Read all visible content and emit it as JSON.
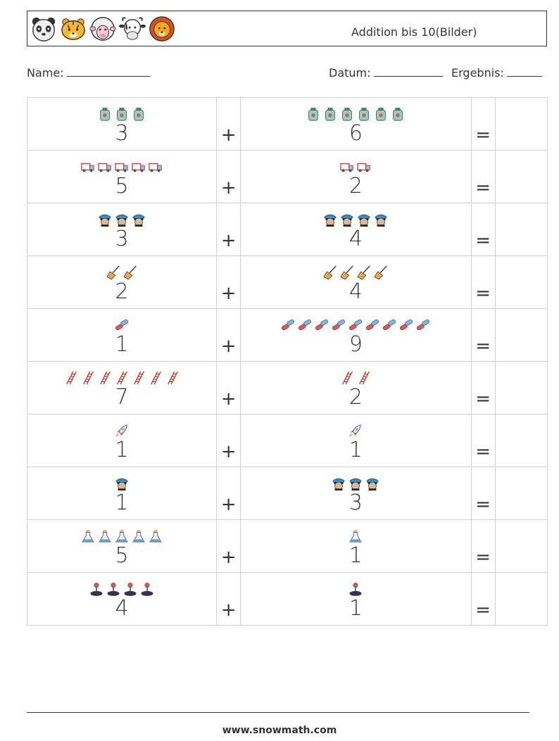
{
  "header": {
    "title": "Addition bis 10(Bilder)",
    "animals": [
      "panda-icon",
      "tiger-icon",
      "sheep-icon",
      "cow-icon",
      "lion-icon"
    ]
  },
  "info": {
    "name_label": "Name:",
    "date_label": "Datum:",
    "result_label": "Ergebnis:"
  },
  "operators": {
    "plus": "+",
    "equals": "="
  },
  "rows": [
    {
      "a": 3,
      "a_icon": "jar-icon",
      "b": 6,
      "b_icon": "jar-icon"
    },
    {
      "a": 5,
      "a_icon": "truck-icon",
      "b": 2,
      "b_icon": "truck-icon"
    },
    {
      "a": 3,
      "a_icon": "police-officer-icon",
      "b": 4,
      "b_icon": "police-officer-icon"
    },
    {
      "a": 2,
      "a_icon": "broom-icon",
      "b": 4,
      "b_icon": "broom-icon"
    },
    {
      "a": 1,
      "a_icon": "pills-icon",
      "b": 9,
      "b_icon": "pills-icon"
    },
    {
      "a": 7,
      "a_icon": "ladder-icon",
      "b": 2,
      "b_icon": "ladder-icon"
    },
    {
      "a": 1,
      "a_icon": "rocket-icon",
      "b": 1,
      "b_icon": "rocket-icon"
    },
    {
      "a": 1,
      "a_icon": "police-officer-icon",
      "b": 3,
      "b_icon": "police-officer-icon"
    },
    {
      "a": 5,
      "a_icon": "flask-icon",
      "b": 1,
      "b_icon": "flask-icon"
    },
    {
      "a": 4,
      "a_icon": "joystick-icon",
      "b": 1,
      "b_icon": "joystick-icon"
    }
  ],
  "footer": {
    "url": "www.snowmath.com"
  }
}
